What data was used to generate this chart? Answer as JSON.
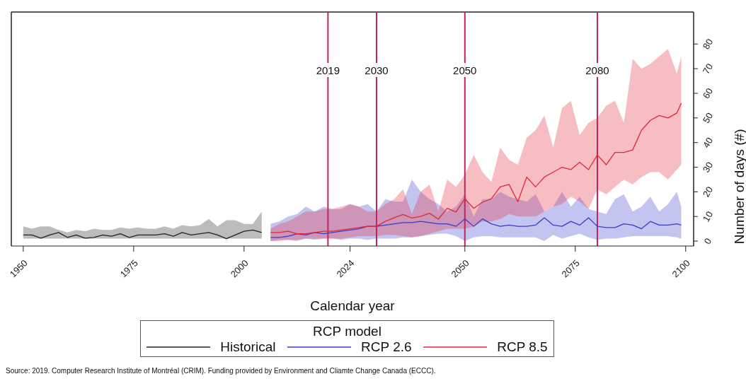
{
  "chart_data": {
    "type": "line",
    "xlabel": "Calendar year",
    "ylabel": "Number of days (#)",
    "legend_title": "RCP model",
    "legend": "bottom",
    "grid": false,
    "marker": "none",
    "line_style": "solid",
    "xlim": [
      1947.3,
      2101.8
    ],
    "xticks": [
      1950,
      1975,
      2000,
      2024,
      2050,
      2075,
      2100
    ],
    "ylim": [
      -2,
      93
    ],
    "yticks": [
      0,
      10,
      20,
      30,
      40,
      50,
      60,
      70,
      80
    ],
    "ref_lines": [
      {
        "axis": "x",
        "value": 2019,
        "label": "2019",
        "color": "#c0245c"
      },
      {
        "axis": "x",
        "value": 2030,
        "label": "2030",
        "color": "#c0245c"
      },
      {
        "axis": "x",
        "value": 2050,
        "label": "2050",
        "color": "#c0245c"
      },
      {
        "axis": "x",
        "value": 2080,
        "label": "2080",
        "color": "#c0245c"
      }
    ],
    "series": [
      {
        "name": "Historical",
        "color": "#222222",
        "x": [
          1950,
          1952,
          1954,
          1956,
          1958,
          1960,
          1962,
          1964,
          1966,
          1968,
          1970,
          1972,
          1974,
          1976,
          1978,
          1980,
          1982,
          1984,
          1986,
          1988,
          1990,
          1992,
          1994,
          1996,
          1998,
          2000,
          2002,
          2004
        ],
        "values": [
          2.5,
          2.5,
          1.2,
          2.5,
          3.5,
          1.5,
          2.5,
          1.2,
          1.5,
          2.5,
          2,
          3,
          1.5,
          2.5,
          2.5,
          2.5,
          3,
          2,
          3.5,
          2.5,
          3,
          3.5,
          2.5,
          1,
          2.5,
          4,
          4.5,
          3.5
        ],
        "lower": [
          1,
          1,
          1,
          1,
          1,
          1,
          1,
          1,
          1,
          1,
          1,
          1,
          1,
          1,
          1,
          1,
          1,
          1,
          1,
          1,
          1,
          1,
          1,
          1,
          1,
          1,
          1,
          1
        ],
        "upper": [
          6,
          5,
          6,
          6,
          4.5,
          3.5,
          4.5,
          4,
          5,
          4.5,
          4.5,
          5.5,
          5,
          5.5,
          5,
          5,
          6,
          5,
          6.5,
          6,
          6.5,
          9,
          6,
          8.5,
          8.5,
          7,
          7,
          12
        ]
      },
      {
        "name": "RCP 2.6",
        "color": "#3a3acc",
        "x": [
          2006,
          2008,
          2010,
          2012,
          2014,
          2016,
          2018,
          2020,
          2022,
          2024,
          2026,
          2028,
          2030,
          2032,
          2034,
          2036,
          2038,
          2040,
          2042,
          2044,
          2046,
          2048,
          2050,
          2052,
          2054,
          2056,
          2058,
          2060,
          2062,
          2064,
          2066,
          2068,
          2070,
          2072,
          2074,
          2076,
          2078,
          2080,
          2082,
          2084,
          2086,
          2088,
          2090,
          2092,
          2094,
          2096,
          2098,
          2099
        ],
        "values": [
          1.5,
          1.5,
          2,
          3,
          2.5,
          3.5,
          3,
          3.5,
          4,
          4.5,
          5,
          6,
          6,
          6.5,
          7,
          7.5,
          7.5,
          8,
          7.5,
          7,
          7,
          6,
          9,
          6,
          9,
          7,
          6,
          6.5,
          6,
          6,
          6.5,
          9.5,
          6.5,
          6,
          8,
          6.5,
          9.5,
          6,
          5.5,
          5.5,
          7,
          6.5,
          5,
          8,
          6.5,
          6.5,
          7,
          6.5
        ],
        "lower": [
          0,
          0.5,
          0.5,
          0,
          1,
          0.5,
          1,
          1,
          0.5,
          1,
          1,
          0.5,
          1,
          1,
          1,
          1.5,
          1.5,
          2,
          2.5,
          3,
          3,
          2,
          0,
          1.5,
          2,
          2,
          1.5,
          1.5,
          1.5,
          1.5,
          1.5,
          0,
          2.5,
          1,
          2,
          3,
          1.5,
          0.5,
          1,
          1,
          1.5,
          2,
          2,
          2,
          2,
          2,
          1.5,
          1
        ],
        "upper": [
          7,
          8,
          10,
          11,
          14,
          12,
          14,
          13,
          13,
          15,
          14,
          15,
          12,
          17,
          16,
          16,
          25,
          20,
          17,
          15,
          12,
          14,
          19,
          10,
          17,
          17,
          20,
          18,
          17,
          16,
          19,
          12,
          14,
          20,
          14,
          18,
          13,
          12,
          11,
          17,
          19,
          12,
          14,
          18,
          12,
          15,
          20,
          14
        ]
      },
      {
        "name": "RCP 8.5",
        "color": "#e02838",
        "x": [
          2006,
          2008,
          2010,
          2012,
          2014,
          2016,
          2018,
          2020,
          2022,
          2024,
          2026,
          2028,
          2030,
          2032,
          2034,
          2036,
          2038,
          2040,
          2042,
          2044,
          2046,
          2048,
          2050,
          2052,
          2054,
          2056,
          2058,
          2060,
          2062,
          2064,
          2066,
          2068,
          2070,
          2072,
          2074,
          2076,
          2078,
          2080,
          2082,
          2084,
          2086,
          2088,
          2090,
          2092,
          2094,
          2096,
          2098,
          2099
        ],
        "values": [
          3.5,
          3.5,
          4,
          3,
          3,
          3.5,
          4,
          4,
          4.5,
          5,
          5.5,
          6,
          6,
          8,
          9.5,
          10.8,
          9.4,
          10,
          11.3,
          8.9,
          13.3,
          11.8,
          17.2,
          13.3,
          15.8,
          17.2,
          22,
          23,
          16,
          26,
          22,
          26,
          28,
          30,
          29,
          32,
          29,
          35,
          31,
          36,
          36,
          37,
          45,
          49,
          51,
          50,
          52,
          56
        ],
        "lower": [
          0,
          0,
          0.5,
          0.5,
          1,
          1,
          1,
          1,
          1,
          1.5,
          2,
          2,
          2,
          2.5,
          2.5,
          2,
          1.5,
          2,
          3,
          4,
          5,
          5,
          5,
          6,
          8,
          8,
          9,
          11,
          10,
          10,
          10,
          12,
          14,
          15,
          18,
          16,
          13,
          21,
          19,
          22,
          25,
          23,
          26,
          28,
          28,
          25,
          29,
          31
        ],
        "upper": [
          5,
          7,
          8,
          10,
          12,
          12,
          13,
          13,
          14,
          15,
          14,
          12,
          12,
          15,
          17,
          21,
          11,
          20,
          23,
          12,
          25,
          22,
          27,
          35,
          28,
          24,
          38,
          33,
          31,
          42,
          45,
          51,
          38,
          54,
          57,
          43,
          48,
          50,
          55,
          57,
          48,
          74,
          70,
          72,
          75,
          78,
          68,
          75
        ]
      }
    ],
    "annotations": [
      "Source: 2019. Computer Research Institute of Montréal (CRIM). Funding provided by Environment and Cliamte Change Canada (ECCC)."
    ]
  }
}
